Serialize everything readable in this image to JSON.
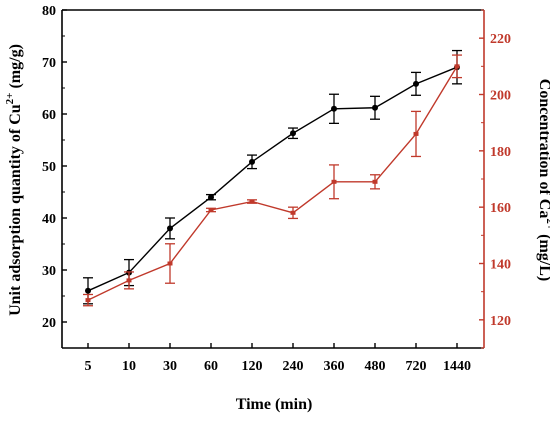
{
  "chart_data": {
    "type": "line",
    "categories": [
      "5",
      "10",
      "30",
      "60",
      "120",
      "240",
      "360",
      "480",
      "720",
      "1440"
    ],
    "xlabel": "Time (min)",
    "y_left": {
      "label_main": "Unit adsorption quantity of Cu",
      "label_sup": "2+",
      "label_unit": " (mg/g)",
      "ylim": [
        15,
        80
      ],
      "ticks": [
        20,
        30,
        40,
        50,
        60,
        70,
        80
      ]
    },
    "y_right": {
      "label_main": "Concentration of Ca",
      "label_sup": "2+",
      "label_unit": " (mg/L)",
      "ylim": [
        110,
        230
      ],
      "ticks": [
        120,
        140,
        160,
        180,
        200,
        220
      ]
    },
    "series": [
      {
        "axis": "left",
        "color": "#000000",
        "values": [
          26.0,
          29.5,
          38.0,
          44.0,
          50.8,
          56.3,
          61.0,
          61.2,
          65.8,
          69.0
        ],
        "errors": [
          2.5,
          2.5,
          2.0,
          0.5,
          1.3,
          1.0,
          2.8,
          2.2,
          2.2,
          3.2
        ]
      },
      {
        "axis": "right",
        "color": "#c0392b",
        "values": [
          127,
          134,
          140,
          159,
          162,
          158,
          169,
          169,
          186,
          210
        ],
        "errors": [
          2,
          3,
          7,
          0.6,
          0.6,
          2,
          6,
          2.5,
          8,
          4
        ]
      }
    ],
    "colors": {
      "left_axis": "#000000",
      "right_axis": "#c0392b"
    }
  }
}
